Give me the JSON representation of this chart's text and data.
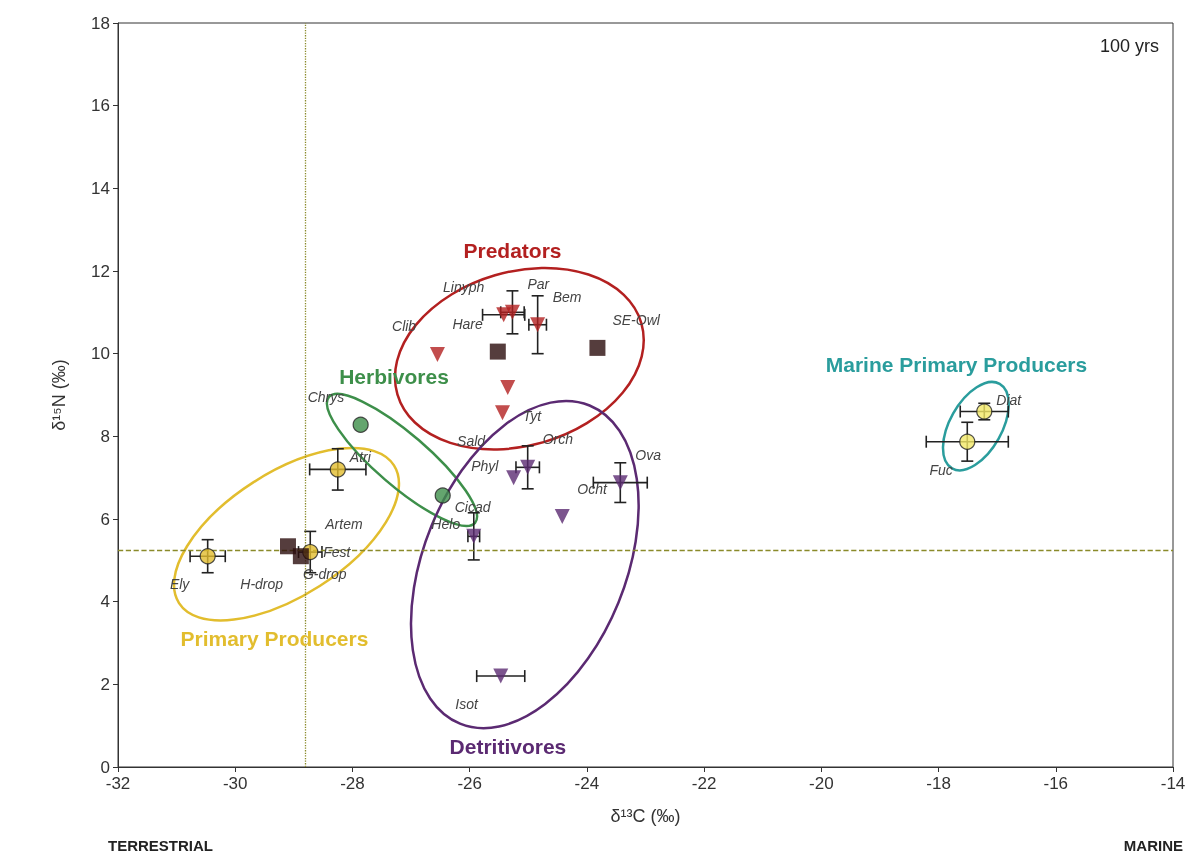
{
  "chart_data": {
    "type": "scatter",
    "xlabel": "δ¹³C (‰)",
    "ylabel": "δ¹⁵N (‰)",
    "xlim": [
      -32,
      -14
    ],
    "xticks": [
      -32,
      -30,
      -28,
      -26,
      -24,
      -22,
      -20,
      -18,
      -16,
      -14
    ],
    "ylim": [
      0,
      18
    ],
    "yticks": [
      0,
      2,
      4,
      6,
      8,
      10,
      12,
      14,
      16,
      18
    ],
    "grid": false,
    "ref_lines": [
      {
        "axis": "x",
        "value": -28.8,
        "color": "#8a8a2a",
        "line_style": "dotted"
      },
      {
        "axis": "y",
        "value": 5.25,
        "color": "#8a8a2a",
        "line_style": "dashed"
      }
    ],
    "series": [
      {
        "name": "Primary Producers",
        "marker": "circle",
        "color": "#e2bd2e",
        "x": [
          -30.47,
          -28.25,
          -28.72
        ],
        "values": [
          5.1,
          7.2,
          5.2
        ],
        "xerrors": [
          0.3,
          0.48,
          0.2
        ],
        "errors": [
          0.4,
          0.5,
          0.5
        ]
      },
      {
        "marker": "square",
        "color": "#2b0d0d",
        "x": [
          -29.1,
          -28.88
        ],
        "values": [
          5.34,
          5.1
        ]
      },
      {
        "name": "Herbivores",
        "marker": "circle",
        "color": "#3d8f4a",
        "x": [
          -27.86,
          -26.46
        ],
        "values": [
          8.28,
          6.57
        ]
      },
      {
        "name": "Predators",
        "marker": "triangle",
        "color": "#b32020",
        "x": [
          -25.42,
          -25.27,
          -24.84,
          -26.55,
          -25.35,
          -25.44
        ],
        "values": [
          10.94,
          11.0,
          10.7,
          9.98,
          9.18,
          8.57
        ],
        "xerrors": [
          0.36,
          0.2,
          0.15,
          null,
          null,
          null
        ],
        "errors": [
          null,
          0.52,
          0.7,
          null,
          null,
          null
        ]
      },
      {
        "marker": "square",
        "color": "#2b0d0d",
        "x": [
          -25.52,
          -23.82
        ],
        "values": [
          10.05,
          10.14
        ]
      },
      {
        "name": "Detritivores",
        "marker": "triangle",
        "color": "#5b2a72",
        "x": [
          -25.01,
          -25.25,
          -23.43,
          -24.42,
          -25.93,
          -25.47
        ],
        "values": [
          7.25,
          7.0,
          6.88,
          6.06,
          5.58,
          2.2
        ],
        "xerrors": [
          0.2,
          null,
          0.46,
          null,
          0.1,
          0.41
        ],
        "errors": [
          0.52,
          null,
          0.48,
          null,
          0.57,
          null
        ]
      },
      {
        "name": "Marine Primary Producers",
        "marker": "circle",
        "color": "#2a9d9d",
        "colors": [
          "#f2e868",
          "#f2e868"
        ],
        "x": [
          -17.22,
          -17.51
        ],
        "values": [
          8.6,
          7.87
        ],
        "xerrors": [
          0.41,
          0.7
        ],
        "errors": [
          0.2,
          0.47
        ]
      }
    ],
    "annotations": [
      "100 yrs",
      "TERRESTRIAL",
      "MARINE",
      {
        "text": "Ely",
        "x": -30.47,
        "y": 5.1
      },
      {
        "text": "G-drop",
        "x": -29.1,
        "y": 5.34
      },
      {
        "text": "H-drop",
        "x": -28.88,
        "y": 5.1
      },
      {
        "text": "Fest",
        "x": -28.72,
        "y": 5.2
      },
      {
        "text": "Artem",
        "x": -28.72,
        "y": 5.2
      },
      {
        "text": "Atri",
        "x": -28.25,
        "y": 7.2
      },
      {
        "text": "Chrys",
        "x": -27.86,
        "y": 8.28
      },
      {
        "text": "Cicad",
        "x": -26.46,
        "y": 6.57
      },
      {
        "text": "Linyph",
        "x": -25.42,
        "y": 10.94
      },
      {
        "text": "Par",
        "x": -25.27,
        "y": 11.0
      },
      {
        "text": "Bem",
        "x": -24.84,
        "y": 10.7
      },
      {
        "text": "SE-Owl",
        "x": -23.82,
        "y": 10.14
      },
      {
        "text": "Clib",
        "x": -26.55,
        "y": 9.98
      },
      {
        "text": "Hare",
        "x": -25.52,
        "y": 10.05
      },
      {
        "text": "Tyt",
        "x": -25.35,
        "y": 9.18
      },
      {
        "text": "Sald",
        "x": -25.44,
        "y": 8.57
      },
      {
        "text": "Orch",
        "x": -25.01,
        "y": 7.25
      },
      {
        "text": "Phyl",
        "x": -25.25,
        "y": 7.0
      },
      {
        "text": "Ova",
        "x": -23.43,
        "y": 6.88
      },
      {
        "text": "Ocht",
        "x": -24.42,
        "y": 6.06
      },
      {
        "text": "Helo",
        "x": -25.93,
        "y": 5.58
      },
      {
        "text": "Isot",
        "x": -25.47,
        "y": 2.2
      },
      {
        "text": "Diat",
        "x": -17.22,
        "y": 8.6
      },
      {
        "text": "Fuc",
        "x": -17.51,
        "y": 7.87
      }
    ]
  }
}
